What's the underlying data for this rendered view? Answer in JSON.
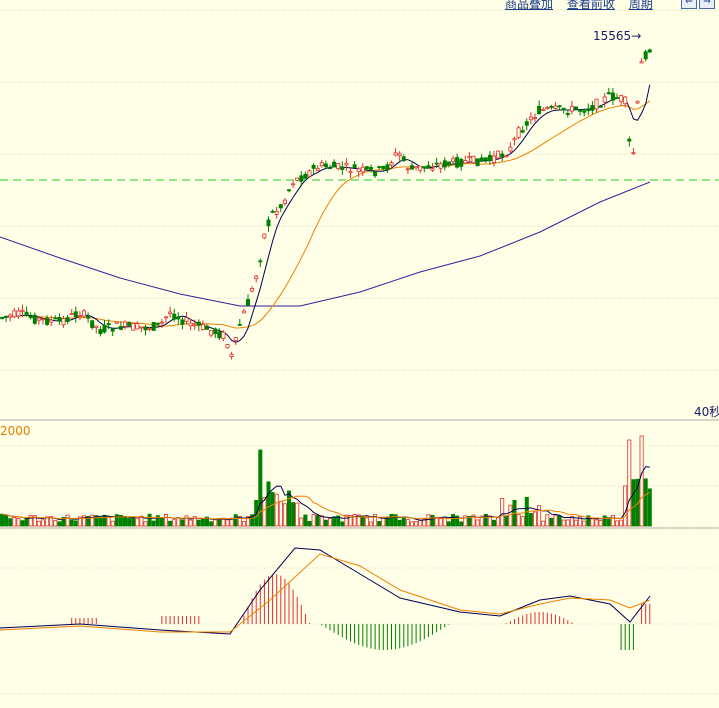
{
  "toolbar": {
    "items": [
      "商品叠加",
      "查看前收",
      "周期"
    ],
    "btn_prev": "⇐",
    "btn_next": "⇒"
  },
  "labels": {
    "high_price": "15565",
    "time_unit": "40秒",
    "volume_scale": "2000"
  },
  "colors": {
    "background": "#FFFFE8",
    "up": "#E03030",
    "down": "#008000",
    "ma_short": "#000050",
    "ma_mid": "#F08000",
    "ma_long": "#3C1E96",
    "dashed_ref": "#22CC22",
    "grid": "#B0B0A0"
  },
  "chart_data": [
    {
      "type": "candlestick",
      "panel": "price",
      "title": "",
      "annotation": "15565",
      "x_axis_label": "40秒",
      "grid": true,
      "reference_line": "dashed-green",
      "candles_sampled": [
        {
          "o": 1,
          "h": 1,
          "l": 1,
          "c": 1
        }
      ]
    },
    {
      "type": "bar",
      "panel": "volume",
      "scale_label": "2000",
      "grid": true
    },
    {
      "type": "bar",
      "panel": "macd",
      "grid": true
    }
  ]
}
